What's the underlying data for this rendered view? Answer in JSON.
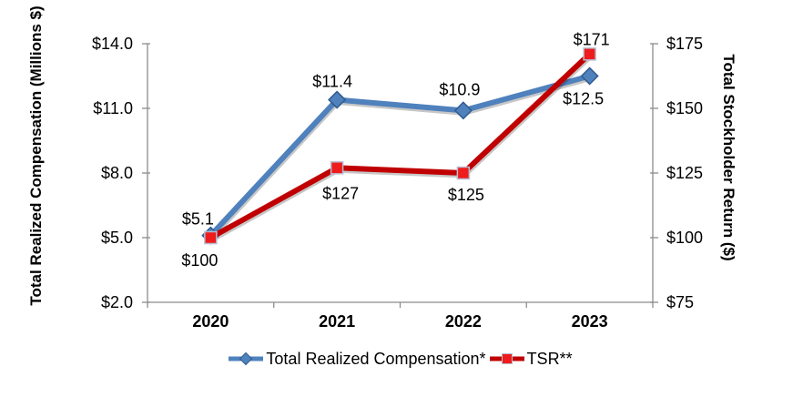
{
  "chart_data": {
    "type": "line",
    "categories": [
      "2020",
      "2021",
      "2022",
      "2023"
    ],
    "series": [
      {
        "name": "Total Realized Compensation*",
        "axis": "left",
        "color": "#4F81BD",
        "marker": "diamond",
        "marker_fill": "#4F81BD",
        "marker_stroke": "#2F5B8F",
        "values": [
          5.1,
          11.4,
          10.9,
          12.5
        ],
        "labels": [
          "$5.1",
          "$11.4",
          "$10.9",
          "$12.5"
        ],
        "label_offsets": [
          {
            "dx": -14,
            "dy": -12
          },
          {
            "dx": -5,
            "dy": -14
          },
          {
            "dx": -4,
            "dy": -17
          },
          {
            "dx": -7,
            "dy": 31
          }
        ]
      },
      {
        "name": "TSR**",
        "axis": "right",
        "color": "#C00000",
        "marker": "square",
        "marker_fill": "#EE1C1C",
        "marker_stroke": "#B8BDD1",
        "values": [
          100,
          127,
          125,
          171
        ],
        "labels": [
          "$100",
          "$127",
          "$125",
          "$171"
        ],
        "label_offsets": [
          {
            "dx": -12,
            "dy": 31
          },
          {
            "dx": 4,
            "dy": 34
          },
          {
            "dx": 3,
            "dy": 30
          },
          {
            "dx": 2,
            "dy": -10
          }
        ]
      }
    ],
    "left_axis": {
      "title": "Total Realized Compensation (Millions $)",
      "min": 2,
      "max": 14,
      "step": 3,
      "tick_labels": [
        "$2.0",
        "$5.0",
        "$8.0",
        "$11.0",
        "$14.0"
      ]
    },
    "right_axis": {
      "title": "Total Stockholder Return ($)",
      "min": 75,
      "max": 175,
      "step": 25,
      "tick_labels": [
        "$75",
        "$100",
        "$125",
        "$150",
        "$175"
      ]
    },
    "grid": false,
    "legend_position": "bottom",
    "background": "#FFFFFF",
    "axis_color": "#8C8C8C",
    "text_color": "#000000"
  }
}
